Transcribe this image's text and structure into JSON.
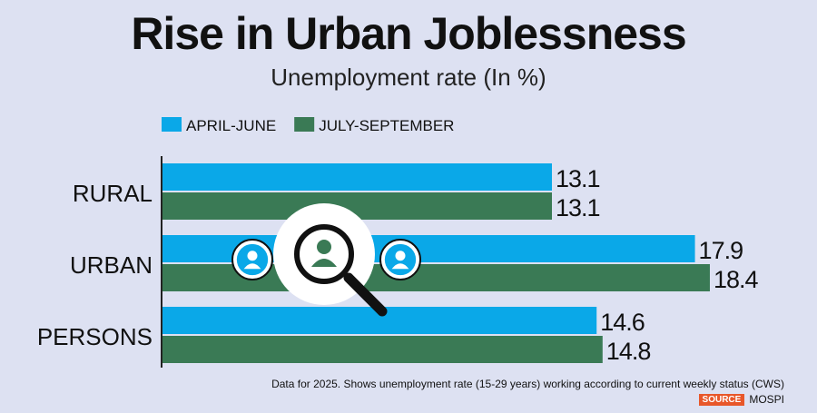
{
  "chart_data": {
    "type": "bar",
    "orientation": "horizontal",
    "title": "Rise in Urban Joblessness",
    "subtitle": "Unemployment rate (In %)",
    "categories": [
      "RURAL",
      "URBAN",
      "PERSONS"
    ],
    "series": [
      {
        "name": "APRIL-JUNE",
        "values": [
          13.1,
          17.9,
          14.6
        ],
        "color": "#0aa8e8"
      },
      {
        "name": "JULY-SEPTEMBER",
        "values": [
          13.1,
          18.4,
          14.8
        ],
        "color": "#3a7a55"
      }
    ],
    "xlim": [
      0,
      20
    ],
    "grid": false,
    "legend_position": "top-left"
  },
  "footnote": "Data for 2025. Shows unemployment rate (15-29 years) working according to current weekly status (CWS)",
  "source_label": "SOURCE",
  "source": "MOSPI",
  "icons": [
    "person-icon",
    "magnifier-person-icon",
    "person-icon"
  ]
}
